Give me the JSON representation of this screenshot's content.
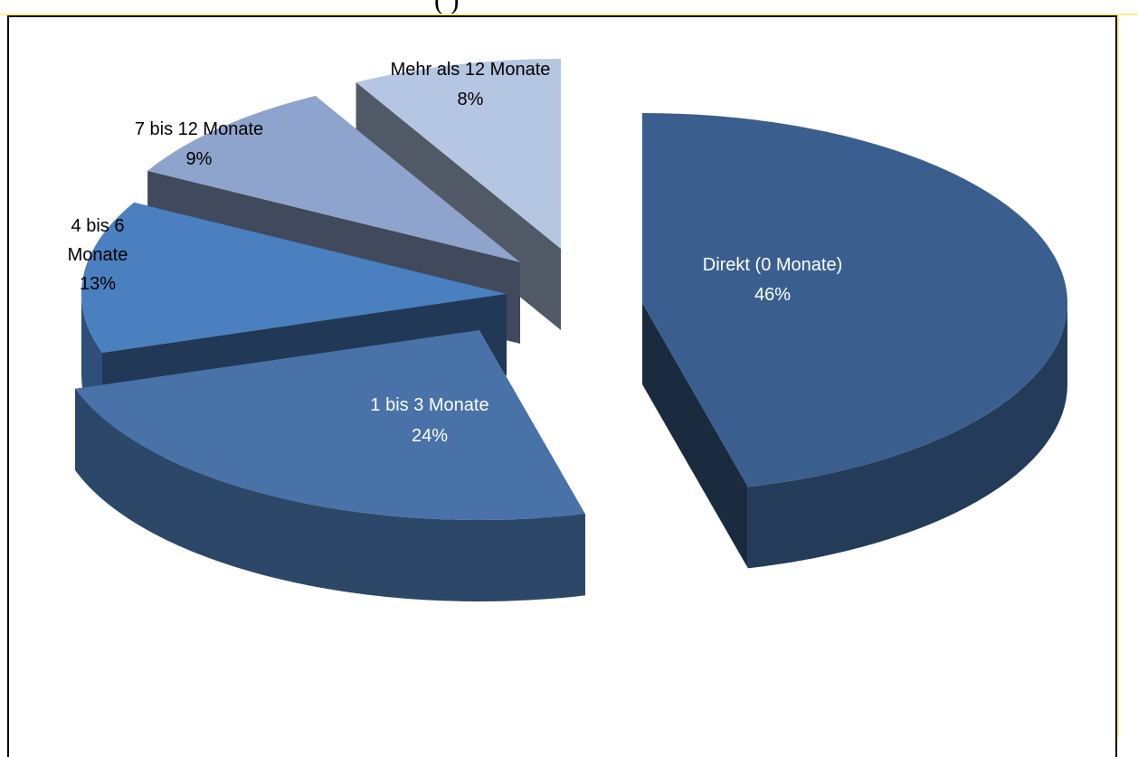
{
  "page": {
    "top_fragment": "(         )"
  },
  "colors": {
    "frame": "#000000",
    "page_edge_highlight": "#ffee8a"
  },
  "chart_data": {
    "type": "pie",
    "title": "",
    "style": "3d-exploded",
    "grid": false,
    "legend": "none (labels on slices)",
    "slices": [
      {
        "label": "Direkt (0 Monate)",
        "value": 46,
        "value_label": "46%",
        "color": "#3a5f8f"
      },
      {
        "label": "1 bis 3 Monate",
        "value": 24,
        "value_label": "24%",
        "color": "#4872a8"
      },
      {
        "label": "4 bis 6 Monate",
        "value": 13,
        "value_label": "13%",
        "color": "#4a7fc0"
      },
      {
        "label": "7 bis 12 Monate",
        "value": 9,
        "value_label": "9%",
        "color": "#8ea4cc"
      },
      {
        "label": "Mehr als 12 Monate",
        "value": 8,
        "value_label": "8%",
        "color": "#b5c6e2"
      }
    ]
  }
}
